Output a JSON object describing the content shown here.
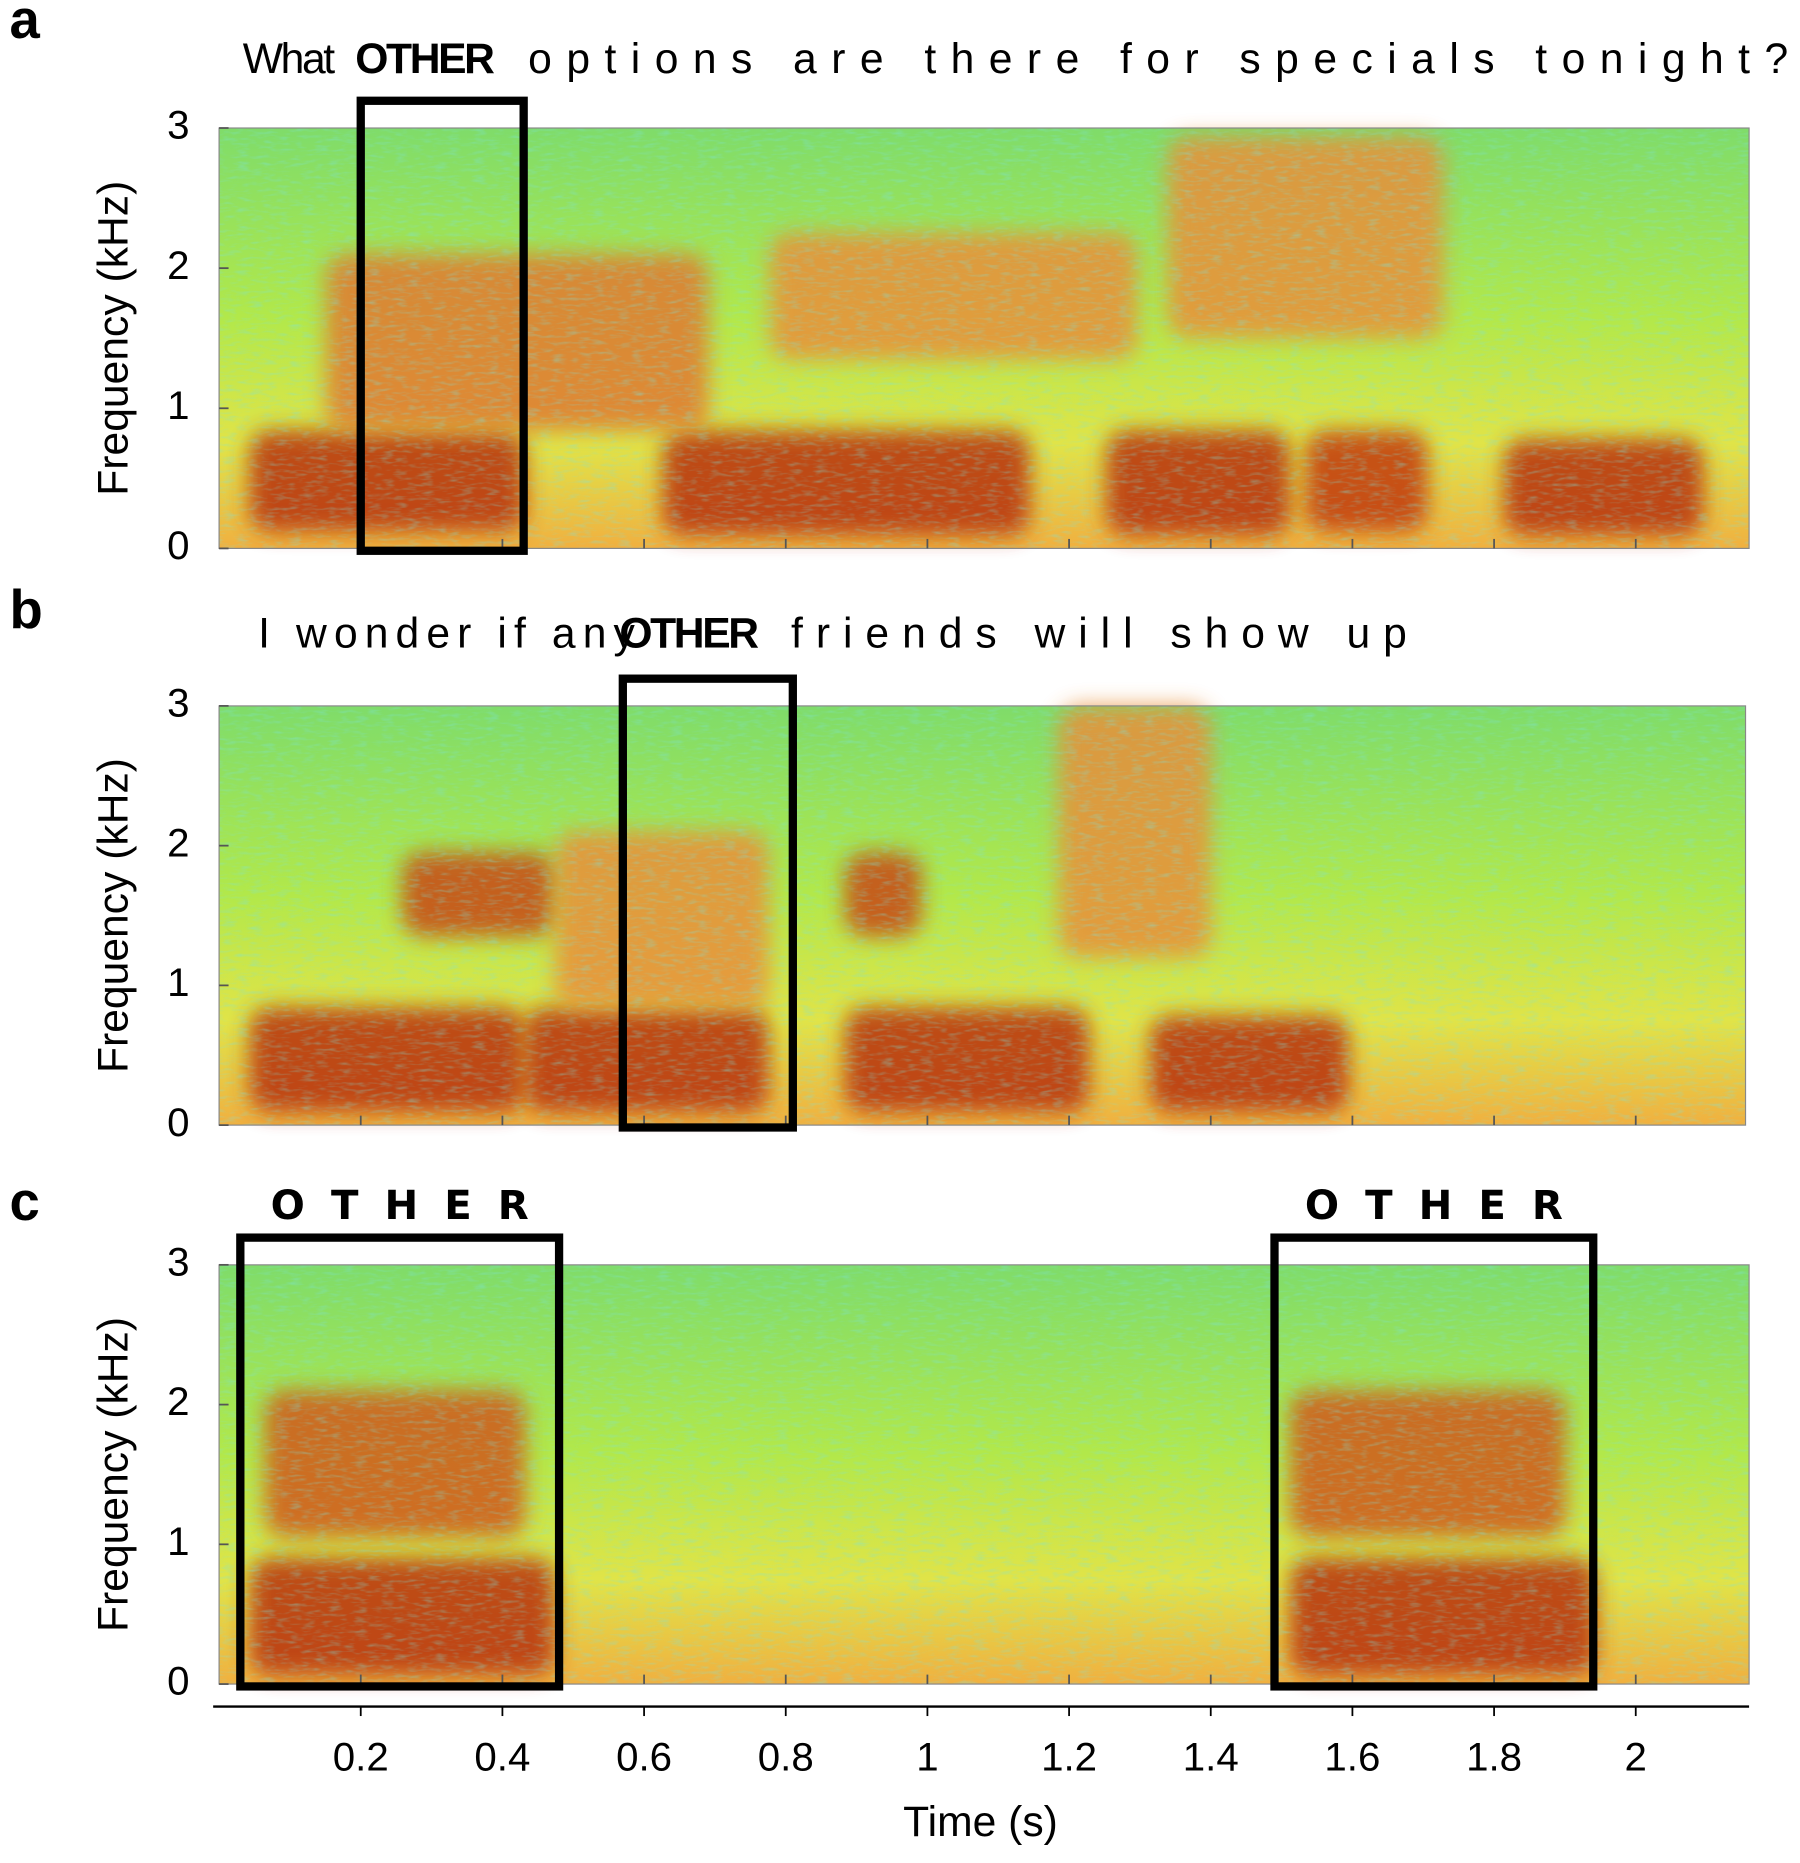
{
  "chart_data": [
    {
      "type": "spectrogram",
      "panel": "a",
      "transcript_before": "What",
      "keyword": "OTHER",
      "transcript_after": "options are there for specials tonight?",
      "ylabel": "Frequency (kHz)",
      "ylim": [
        0,
        3
      ],
      "yticks": [
        0,
        1,
        2,
        3
      ],
      "xlim": [
        0,
        2.16
      ],
      "highlights": [
        {
          "start": 0.2,
          "end": 0.43
        }
      ]
    },
    {
      "type": "spectrogram",
      "panel": "b",
      "transcript_before": "I wonder if any",
      "keyword": "OTHER",
      "transcript_after": "friends will show up",
      "ylabel": "Frequency (kHz)",
      "ylim": [
        0,
        3
      ],
      "yticks": [
        0,
        1,
        2,
        3
      ],
      "xlim": [
        0,
        2.155
      ],
      "highlights": [
        {
          "start": 0.57,
          "end": 0.81
        }
      ]
    },
    {
      "type": "spectrogram",
      "panel": "c",
      "ylabel": "Frequency (kHz)",
      "ylim": [
        0,
        3
      ],
      "yticks": [
        0,
        1,
        2,
        3
      ],
      "xlim": [
        0,
        2.16
      ],
      "xlabel": "Time (s)",
      "xticks": [
        0.2,
        0.4,
        0.6,
        0.8,
        1,
        1.2,
        1.4,
        1.6,
        1.8,
        2
      ],
      "highlights": [
        {
          "start": 0.03,
          "end": 0.48,
          "label": "OTHER"
        },
        {
          "start": 1.49,
          "end": 1.94,
          "label": "OTHER"
        }
      ]
    }
  ]
}
